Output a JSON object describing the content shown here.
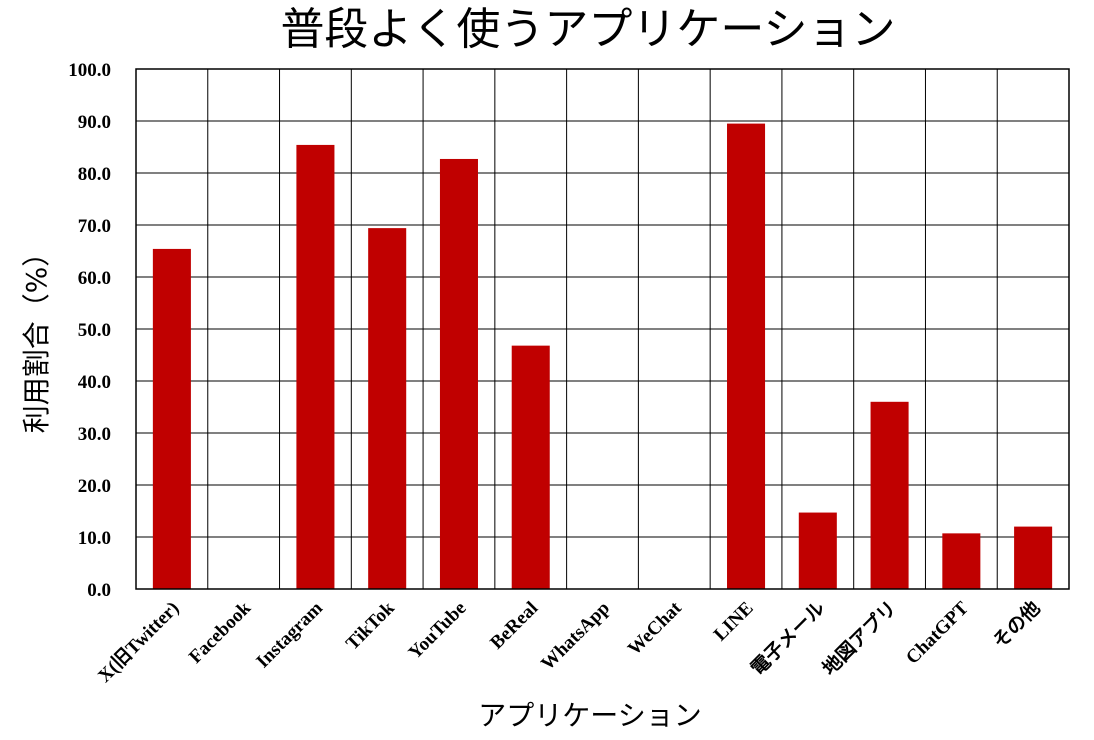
{
  "chart_data": {
    "type": "bar",
    "title": "普段よく使うアプリケーション",
    "xlabel": "アプリケーション",
    "ylabel": "利用割合（%）",
    "categories": [
      "X(旧Twitter)",
      "Facebook",
      "Instagram",
      "TikTok",
      "YouTube",
      "BeReal",
      "WhatsApp",
      "WeChat",
      "LINE",
      "電子メール",
      "地図アプリ",
      "ChatGPT",
      "その他"
    ],
    "values": [
      65.4,
      0,
      85.4,
      69.4,
      82.7,
      46.8,
      0,
      0,
      89.5,
      14.7,
      36.0,
      10.7,
      12.0
    ],
    "ylim": [
      0,
      100
    ],
    "yticks": [
      "0.0",
      "10.0",
      "20.0",
      "30.0",
      "40.0",
      "50.0",
      "60.0",
      "70.0",
      "80.0",
      "90.0",
      "100.0"
    ],
    "grid": true,
    "bar_color": "#c00000"
  }
}
